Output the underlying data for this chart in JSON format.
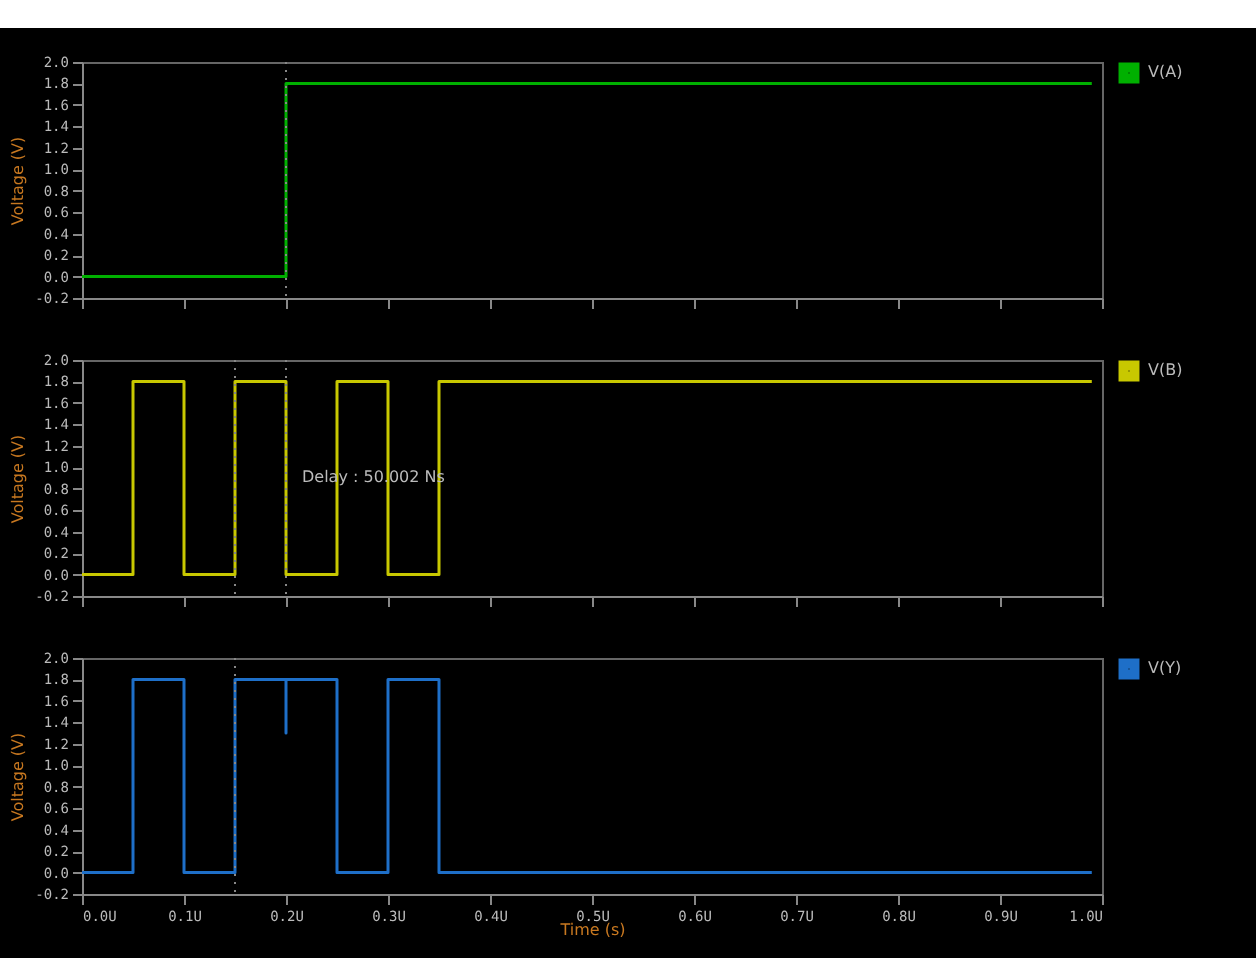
{
  "chart_data": [
    {
      "type": "line",
      "ylabel": "Voltage (V)",
      "xlim": [
        0,
        1
      ],
      "xticks": [
        {
          "value": 0,
          "label": null
        },
        {
          "value": 0.1,
          "label": null
        },
        {
          "value": 0.2,
          "label": null
        },
        {
          "value": 0.3,
          "label": null
        },
        {
          "value": 0.4,
          "label": null
        },
        {
          "value": 0.5,
          "label": null
        },
        {
          "value": 0.6,
          "label": null
        },
        {
          "value": 0.7,
          "label": null
        },
        {
          "value": 0.8,
          "label": null
        },
        {
          "value": 0.9,
          "label": null
        },
        {
          "value": 1,
          "label": null
        }
      ],
      "ylim": [
        -0.2,
        2.0
      ],
      "yticks": [
        {
          "value": -0.2,
          "label": "-0.2"
        },
        {
          "value": 0,
          "label": "0.0"
        },
        {
          "value": 0.2,
          "label": "0.2"
        },
        {
          "value": 0.4,
          "label": "0.4"
        },
        {
          "value": 0.6,
          "label": "0.6"
        },
        {
          "value": 0.8,
          "label": "0.8"
        },
        {
          "value": 1,
          "label": "1.0"
        },
        {
          "value": 1.2,
          "label": "1.2"
        },
        {
          "value": 1.4,
          "label": "1.4"
        },
        {
          "value": 1.6,
          "label": "1.6"
        },
        {
          "value": 1.8,
          "label": "1.8"
        },
        {
          "value": 2,
          "label": "2.0"
        }
      ],
      "tick_labels": "y",
      "legend": "right",
      "ref_lines": [
        {
          "axis": "x",
          "value": 0.2,
          "color": "#888888",
          "line_style": "dotted"
        }
      ],
      "series": [
        {
          "name": "V(A)",
          "color": "#00b000",
          "x": [
            0,
            0.2,
            0.2,
            0.99
          ],
          "values": [
            0,
            0,
            1.8,
            1.8
          ]
        }
      ]
    },
    {
      "type": "line",
      "ylabel": "Voltage (V)",
      "xlim": [
        0,
        1
      ],
      "xticks": [
        {
          "value": 0,
          "label": null
        },
        {
          "value": 0.1,
          "label": null
        },
        {
          "value": 0.2,
          "label": null
        },
        {
          "value": 0.3,
          "label": null
        },
        {
          "value": 0.4,
          "label": null
        },
        {
          "value": 0.5,
          "label": null
        },
        {
          "value": 0.6,
          "label": null
        },
        {
          "value": 0.7,
          "label": null
        },
        {
          "value": 0.8,
          "label": null
        },
        {
          "value": 0.9,
          "label": null
        },
        {
          "value": 1,
          "label": null
        }
      ],
      "ylim": [
        -0.2,
        2.0
      ],
      "yticks": [
        {
          "value": -0.2,
          "label": "-0.2"
        },
        {
          "value": 0,
          "label": "0.0"
        },
        {
          "value": 0.2,
          "label": "0.2"
        },
        {
          "value": 0.4,
          "label": "0.4"
        },
        {
          "value": 0.6,
          "label": "0.6"
        },
        {
          "value": 0.8,
          "label": "0.8"
        },
        {
          "value": 1,
          "label": "1.0"
        },
        {
          "value": 1.2,
          "label": "1.2"
        },
        {
          "value": 1.4,
          "label": "1.4"
        },
        {
          "value": 1.6,
          "label": "1.6"
        },
        {
          "value": 1.8,
          "label": "1.8"
        },
        {
          "value": 2,
          "label": "2.0"
        }
      ],
      "tick_labels": "y",
      "legend": "right",
      "ref_lines": [
        {
          "axis": "x",
          "value": 0.15,
          "color": "#888888",
          "line_style": "dotted"
        },
        {
          "axis": "x",
          "value": 0.2,
          "color": "#888888",
          "line_style": "dotted"
        }
      ],
      "annotations": [
        {
          "text": "Delay : 50.002 Ns",
          "x": 0.2,
          "y": 0.9
        }
      ],
      "series": [
        {
          "name": "V(B)",
          "color": "#c8c800",
          "x": [
            0,
            0.05,
            0.05,
            0.1,
            0.1,
            0.15,
            0.15,
            0.2,
            0.2,
            0.25,
            0.25,
            0.3,
            0.3,
            0.35,
            0.35,
            0.99
          ],
          "values": [
            0,
            0,
            1.8,
            1.8,
            0,
            0,
            1.8,
            1.8,
            0,
            0,
            1.8,
            1.8,
            0,
            0,
            1.8,
            1.8
          ]
        }
      ]
    },
    {
      "type": "line",
      "ylabel": "Voltage (V)",
      "xlabel": "Time (s)",
      "xlim": [
        0,
        1
      ],
      "xticks": [
        {
          "value": 0,
          "label": "0.0U"
        },
        {
          "value": 0.1,
          "label": "0.1U"
        },
        {
          "value": 0.2,
          "label": "0.2U"
        },
        {
          "value": 0.3,
          "label": "0.3U"
        },
        {
          "value": 0.4,
          "label": "0.4U"
        },
        {
          "value": 0.5,
          "label": "0.5U"
        },
        {
          "value": 0.6,
          "label": "0.6U"
        },
        {
          "value": 0.7,
          "label": "0.7U"
        },
        {
          "value": 0.8,
          "label": "0.8U"
        },
        {
          "value": 0.9,
          "label": "0.9U"
        },
        {
          "value": 1,
          "label": "1.0U"
        }
      ],
      "ylim": [
        -0.2,
        2.0
      ],
      "yticks": [
        {
          "value": -0.2,
          "label": "-0.2"
        },
        {
          "value": 0,
          "label": "0.0"
        },
        {
          "value": 0.2,
          "label": "0.2"
        },
        {
          "value": 0.4,
          "label": "0.4"
        },
        {
          "value": 0.6,
          "label": "0.6"
        },
        {
          "value": 0.8,
          "label": "0.8"
        },
        {
          "value": 1,
          "label": "1.0"
        },
        {
          "value": 1.2,
          "label": "1.2"
        },
        {
          "value": 1.4,
          "label": "1.4"
        },
        {
          "value": 1.6,
          "label": "1.6"
        },
        {
          "value": 1.8,
          "label": "1.8"
        },
        {
          "value": 2,
          "label": "2.0"
        }
      ],
      "legend": "right",
      "ref_lines": [
        {
          "axis": "x",
          "value": 0.15,
          "color": "#888888",
          "line_style": "dotted"
        }
      ],
      "series": [
        {
          "name": "V(Y)",
          "color": "#1e6fc8",
          "x": [
            0,
            0.05,
            0.05,
            0.1,
            0.1,
            0.15,
            0.15,
            0.2,
            0.2,
            0.2,
            0.25,
            0.25,
            0.3,
            0.3,
            0.35,
            0.35,
            0.99
          ],
          "values": [
            0,
            0,
            1.8,
            1.8,
            0,
            0,
            1.8,
            1.8,
            1.3,
            1.8,
            1.8,
            0,
            0,
            1.8,
            1.8,
            0,
            0
          ]
        }
      ]
    }
  ]
}
